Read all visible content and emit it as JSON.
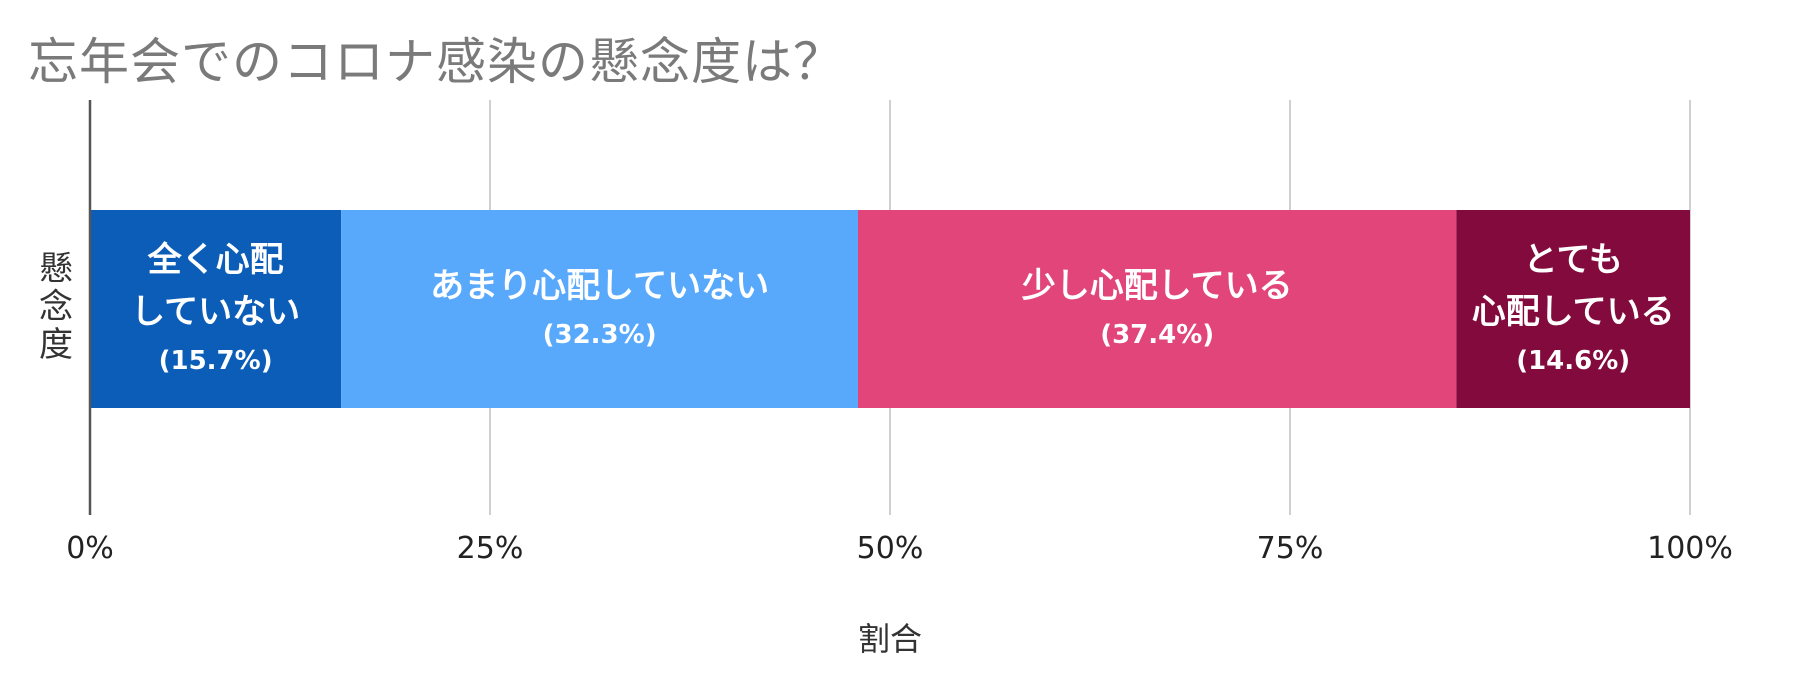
{
  "chart_data": {
    "type": "bar",
    "orientation": "horizontal",
    "stacked": "100%",
    "title": "忘年会でのコロナ感染の懸念度は？",
    "xlabel": "割合",
    "ylabel": "懸念度",
    "xlim": [
      0,
      100
    ],
    "x_ticks": [
      "0%",
      "25%",
      "50%",
      "75%",
      "100%"
    ],
    "x_tick_values": [
      0,
      25,
      50,
      75,
      100
    ],
    "grid": true,
    "legend": "none",
    "categories": [
      "懸念度"
    ],
    "series": [
      {
        "name": "全く心配していない",
        "value": 15.7,
        "label_lines": [
          "全く心配",
          "していない"
        ],
        "pct_label": "(15.7%)",
        "color": "#0b5db8"
      },
      {
        "name": "あまり心配していない",
        "value": 32.3,
        "label_lines": [
          "あまり心配していない"
        ],
        "pct_label": "(32.3%)",
        "color": "#58a8fb"
      },
      {
        "name": "少し心配している",
        "value": 37.4,
        "label_lines": [
          "少し心配している"
        ],
        "pct_label": "(37.4%)",
        "color": "#e1457a"
      },
      {
        "name": "とても心配している",
        "value": 14.6,
        "label_lines": [
          "とても",
          "心配している"
        ],
        "pct_label": "(14.6%)",
        "color": "#820a3c"
      }
    ]
  }
}
